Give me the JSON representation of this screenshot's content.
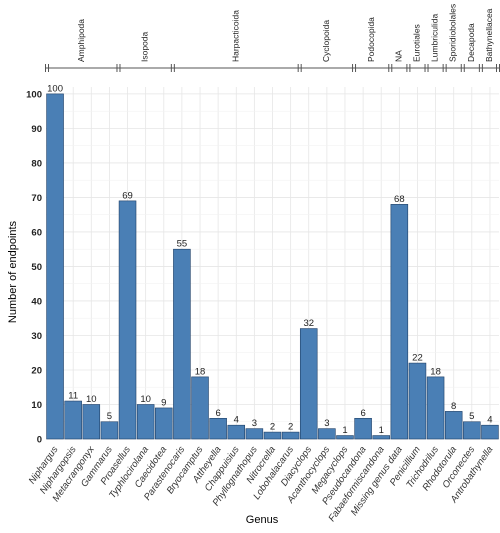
{
  "chart_data": {
    "type": "bar",
    "xlabel": "Genus",
    "ylabel": "Number of endpoints",
    "ylim": [
      0,
      102
    ],
    "yticks": [
      "0",
      "10",
      "20",
      "30",
      "40",
      "50",
      "60",
      "70",
      "80",
      "90",
      "100"
    ],
    "grid": true,
    "bar_color": "#4a7fb5",
    "categories": [
      "Niphargus",
      "Niphargopsis",
      "Metacrangonyx",
      "Gammarus",
      "Proasellus",
      "Typhlocirolana",
      "Caecidotea",
      "Parastenocaris",
      "Bryocamptus",
      "Attheyella",
      "Chappuisius",
      "Phyllognathopus",
      "Nitrocrella",
      "Lobohalacarus",
      "Diacyclops",
      "Acanthocyclops",
      "Megacyclops",
      "Pseudocandona",
      "Fabaeformiscandona",
      "Missing genus data",
      "Penicillium",
      "Trichodrilus",
      "Rhodotorula",
      "Orconectes",
      "Antrobathynella"
    ],
    "values": [
      100,
      11,
      10,
      5,
      69,
      10,
      9,
      55,
      18,
      6,
      4,
      3,
      2,
      2,
      32,
      3,
      1,
      6,
      1,
      68,
      22,
      18,
      8,
      5,
      4
    ],
    "value_labels": [
      "100",
      "11",
      "10",
      "5",
      "69",
      "10",
      "9",
      "55",
      "18",
      "6",
      "4",
      "3",
      "2",
      "2",
      "32",
      "3",
      "1",
      "6",
      "1",
      "68",
      "22",
      "18",
      "8",
      "5",
      "4"
    ],
    "groups": [
      {
        "name": "Amphipoda",
        "start": 0,
        "end": 3
      },
      {
        "name": "Isopoda",
        "start": 4,
        "end": 6
      },
      {
        "name": "Harpacticoida",
        "start": 7,
        "end": 13
      },
      {
        "name": "Cyclopoida",
        "start": 14,
        "end": 16
      },
      {
        "name": "Podocopida",
        "start": 17,
        "end": 18
      },
      {
        "name": "NA",
        "start": 19,
        "end": 19
      },
      {
        "name": "Eurotiales",
        "start": 20,
        "end": 20
      },
      {
        "name": "Lumbriculida",
        "start": 21,
        "end": 21
      },
      {
        "name": "Sporidiobolales",
        "start": 22,
        "end": 22
      },
      {
        "name": "Decapoda",
        "start": 23,
        "end": 23
      },
      {
        "name": "Bathynellacea",
        "start": 24,
        "end": 24
      }
    ]
  }
}
